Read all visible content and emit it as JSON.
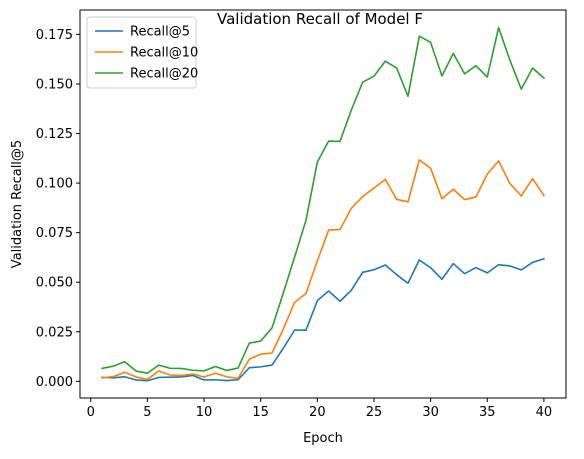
{
  "chart_data": {
    "type": "line",
    "title": "Validation Recall of Model F",
    "xlabel": "Epoch",
    "ylabel": "Validation Recall@5",
    "xlim": [
      -0.95,
      41.95
    ],
    "ylim": [
      -0.0084,
      0.1873
    ],
    "xticks": [
      0,
      5,
      10,
      15,
      20,
      25,
      30,
      35,
      40
    ],
    "xtick_labels": [
      "0",
      "5",
      "10",
      "15",
      "20",
      "25",
      "30",
      "35",
      "40"
    ],
    "yticks": [
      0.0,
      0.025,
      0.05,
      0.075,
      0.1,
      0.125,
      0.15,
      0.175
    ],
    "ytick_labels": [
      "0.000",
      "0.025",
      "0.050",
      "0.075",
      "0.100",
      "0.125",
      "0.150",
      "0.175"
    ],
    "grid": false,
    "legend_position": "top-left",
    "x": [
      1,
      2,
      3,
      4,
      5,
      6,
      7,
      8,
      9,
      10,
      11,
      12,
      13,
      14,
      15,
      16,
      17,
      18,
      19,
      20,
      21,
      22,
      23,
      24,
      25,
      26,
      27,
      28,
      29,
      30,
      31,
      32,
      33,
      34,
      35,
      36,
      37,
      38,
      39,
      40
    ],
    "series": [
      {
        "name": "Recall@5",
        "color": "#1f77b4",
        "values": [
          0.002,
          0.0018,
          0.0023,
          0.0007,
          0.0003,
          0.002,
          0.0021,
          0.0022,
          0.003,
          0.0007,
          0.0008,
          0.0004,
          0.0008,
          0.0069,
          0.0073,
          0.0082,
          0.0167,
          0.0259,
          0.0258,
          0.0407,
          0.0456,
          0.0404,
          0.0459,
          0.055,
          0.0563,
          0.0587,
          0.0538,
          0.0495,
          0.0612,
          0.0573,
          0.0515,
          0.0594,
          0.0543,
          0.0574,
          0.0547,
          0.0588,
          0.0582,
          0.0562,
          0.06,
          0.0618
        ]
      },
      {
        "name": "Recall@10",
        "color": "#ff7f0e",
        "values": [
          0.0017,
          0.0024,
          0.0046,
          0.0022,
          0.0009,
          0.0052,
          0.0032,
          0.003,
          0.0037,
          0.0022,
          0.0041,
          0.0023,
          0.0015,
          0.0112,
          0.0137,
          0.0143,
          0.0264,
          0.0399,
          0.0443,
          0.0608,
          0.0763,
          0.0766,
          0.0873,
          0.0932,
          0.0975,
          0.1019,
          0.0918,
          0.0905,
          0.1117,
          0.1075,
          0.0921,
          0.0969,
          0.0917,
          0.093,
          0.1045,
          0.1112,
          0.0998,
          0.0935,
          0.1022,
          0.0938
        ]
      },
      {
        "name": "Recall@20",
        "color": "#2ca02c",
        "values": [
          0.0065,
          0.0077,
          0.0099,
          0.0052,
          0.0041,
          0.0082,
          0.0066,
          0.0065,
          0.0056,
          0.0053,
          0.0075,
          0.0055,
          0.0067,
          0.0193,
          0.0203,
          0.027,
          0.0446,
          0.0628,
          0.0813,
          0.1106,
          0.1212,
          0.121,
          0.1368,
          0.1509,
          0.1539,
          0.1615,
          0.158,
          0.1438,
          0.1741,
          0.171,
          0.154,
          0.1654,
          0.1551,
          0.1592,
          0.1535,
          0.1784,
          0.162,
          0.1474,
          0.158,
          0.153
        ]
      }
    ]
  }
}
